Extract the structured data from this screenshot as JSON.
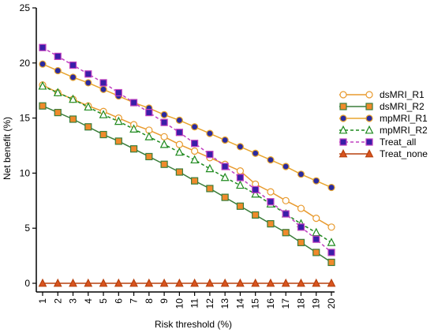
{
  "chart_data": {
    "type": "line",
    "xlabel": "Risk threshold (%)",
    "ylabel": "Net benefit (%)",
    "x": [
      1,
      2,
      3,
      4,
      5,
      6,
      7,
      8,
      9,
      10,
      11,
      12,
      13,
      14,
      15,
      16,
      17,
      18,
      19,
      20
    ],
    "xlim": [
      1,
      20
    ],
    "ylim": [
      0,
      25
    ],
    "yticks": [
      0,
      5,
      10,
      15,
      20,
      25
    ],
    "xticks": [
      "1",
      "2",
      "3",
      "4",
      "5",
      "6",
      "7",
      "8",
      "9",
      "10",
      "11",
      "12",
      "13",
      "14",
      "15",
      "16",
      "17",
      "18",
      "19",
      "20"
    ],
    "yticks_labels": [
      "0",
      "5",
      "10",
      "15",
      "20",
      "25"
    ],
    "legend_position": "right",
    "grid": false,
    "series": [
      {
        "name": "dsMRI_R1",
        "color": "#e89a2e",
        "fill": "#ffffff",
        "marker": "circle",
        "dash": false,
        "values": [
          18.0,
          17.3,
          16.7,
          16.1,
          15.6,
          15.0,
          14.4,
          13.9,
          13.3,
          12.6,
          12.0,
          11.4,
          10.8,
          10.2,
          9.0,
          8.3,
          7.5,
          6.8,
          5.9,
          5.1
        ]
      },
      {
        "name": "dsMRI_R2",
        "color": "#3a7d3a",
        "fill": "#f08a2b",
        "marker": "square",
        "dash": false,
        "values": [
          16.1,
          15.5,
          14.9,
          14.2,
          13.5,
          12.9,
          12.2,
          11.5,
          10.8,
          10.1,
          9.3,
          8.6,
          7.8,
          7.0,
          6.2,
          5.4,
          4.6,
          3.7,
          2.8,
          1.9
        ]
      },
      {
        "name": "mpMRI_R1",
        "color": "#e8a52e",
        "fill": "#2a2aa0",
        "marker": "circle",
        "dash": false,
        "values": [
          19.9,
          19.3,
          18.7,
          18.2,
          17.6,
          17.0,
          16.4,
          15.9,
          15.3,
          14.8,
          14.2,
          13.6,
          13.0,
          12.4,
          11.8,
          11.2,
          10.6,
          9.9,
          9.3,
          8.7
        ]
      },
      {
        "name": "mpMRI_R2",
        "color": "#1f8a1f",
        "fill": "#ffffff",
        "marker": "triangle",
        "dash": true,
        "values": [
          17.9,
          17.3,
          16.7,
          16.0,
          15.3,
          14.7,
          14.0,
          13.3,
          12.6,
          11.9,
          11.2,
          10.4,
          9.6,
          8.9,
          8.1,
          7.2,
          6.3,
          5.4,
          4.6,
          3.7
        ]
      },
      {
        "name": "Treat_all",
        "color": "#c040c0",
        "fill": "#3a1ea8",
        "marker": "square",
        "dash": true,
        "values": [
          21.4,
          20.6,
          19.8,
          19.0,
          18.2,
          17.3,
          16.4,
          15.5,
          14.6,
          13.7,
          12.7,
          11.7,
          10.6,
          9.6,
          8.5,
          7.4,
          6.3,
          5.1,
          4.0,
          2.8
        ]
      },
      {
        "name": "Treat_none",
        "color": "#b7410e",
        "fill": "#d9541e",
        "marker": "triangle",
        "dash": false,
        "values": [
          0,
          0,
          0,
          0,
          0,
          0,
          0,
          0,
          0,
          0,
          0,
          0,
          0,
          0,
          0,
          0,
          0,
          0,
          0,
          0
        ]
      }
    ]
  }
}
